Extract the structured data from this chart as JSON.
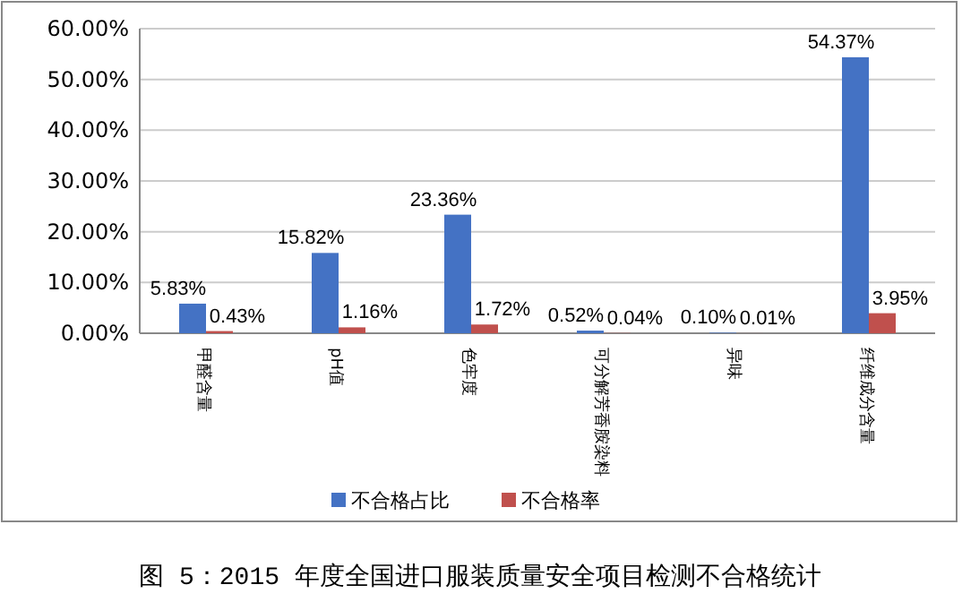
{
  "chart_data": {
    "type": "bar",
    "title": "图 5：2015 年度全国进口服装质量安全项目检测不合格统计",
    "categories": [
      "甲醛含量",
      "pH值",
      "色牢度",
      "可分解芳香胺染料",
      "异味",
      "纤维成分含量"
    ],
    "series": [
      {
        "name": "不合格占比",
        "color": "#4472c4",
        "values": [
          5.83,
          15.82,
          23.36,
          0.52,
          0.1,
          54.37
        ],
        "value_labels": [
          "5.83%",
          "15.82%",
          "23.36%",
          "0.52%",
          "0.10%",
          "54.37%"
        ]
      },
      {
        "name": "不合格率",
        "color": "#c0504d",
        "values": [
          0.43,
          1.16,
          1.72,
          0.04,
          0.01,
          3.95
        ],
        "value_labels": [
          "0.43%",
          "1.16%",
          "1.72%",
          "0.04%",
          "0.01%",
          "3.95%"
        ]
      }
    ],
    "ylim": [
      0,
      60
    ],
    "yticks": [
      {
        "value": 0,
        "label": "0.00%"
      },
      {
        "value": 10,
        "label": "10.00%"
      },
      {
        "value": 20,
        "label": "20.00%"
      },
      {
        "value": 30,
        "label": "30.00%"
      },
      {
        "value": 40,
        "label": "40.00%"
      },
      {
        "value": 50,
        "label": "50.00%"
      },
      {
        "value": 60,
        "label": "60.00%"
      }
    ],
    "grid": "y",
    "legend": "bottom"
  }
}
